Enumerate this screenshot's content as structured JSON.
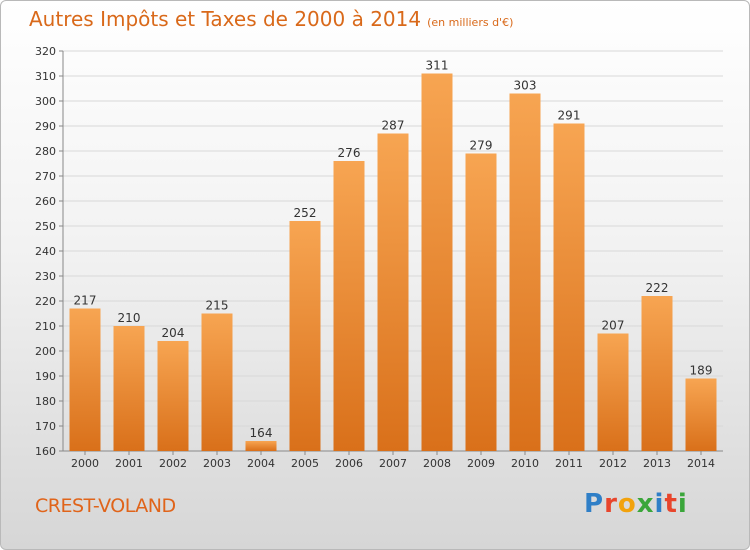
{
  "header": {
    "title": "Autres Impôts et Taxes de 2000 à 2014",
    "unit": "(en milliers d'€)"
  },
  "footer": {
    "commune": "CREST-VOLAND",
    "logo_letters": [
      "P",
      "r",
      "o",
      "x",
      "i",
      "t",
      "i"
    ],
    "logo_colors": [
      "#2f7fc7",
      "#e8452c",
      "#f2a20c",
      "#3aa63a",
      "#2f7fc7",
      "#e8452c",
      "#3aa63a"
    ]
  },
  "colors": {
    "bar_top": "#f7a552",
    "bar_bottom": "#d9701a",
    "grid": "#d8d8d8",
    "axis": "#888888",
    "text": "#333333"
  },
  "chart_data": {
    "type": "bar",
    "title": "Autres Impôts et Taxes de 2000 à 2014",
    "xlabel": "",
    "ylabel": "",
    "categories": [
      "2000",
      "2001",
      "2002",
      "2003",
      "2004",
      "2005",
      "2006",
      "2007",
      "2008",
      "2009",
      "2010",
      "2011",
      "2012",
      "2013",
      "2014"
    ],
    "values": [
      217,
      210,
      204,
      215,
      164,
      252,
      276,
      287,
      311,
      279,
      303,
      291,
      207,
      222,
      189
    ],
    "ylim": [
      160,
      320
    ],
    "yticks": [
      160,
      170,
      180,
      190,
      200,
      210,
      220,
      230,
      240,
      250,
      260,
      270,
      280,
      290,
      300,
      310,
      320
    ],
    "grid": true,
    "legend": "none"
  }
}
